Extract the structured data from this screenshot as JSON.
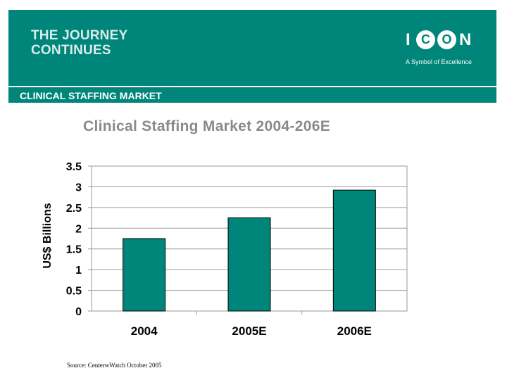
{
  "banner": {
    "title_line1": "THE JOURNEY",
    "title_line2": "CONTINUES",
    "logo_letters": [
      "I",
      "C",
      "O",
      "N"
    ],
    "logo_tagline": "A Symbol of Excellence"
  },
  "section": {
    "title": "CLINICAL STAFFING MARKET"
  },
  "colors": {
    "brand": "#00857a",
    "bar": "#00857a",
    "title": "#8a8a8a"
  },
  "chart_data": {
    "type": "bar",
    "title": "Clinical Staffing Market 2004-206E",
    "ylabel": "US$ Billions",
    "xlabel": "",
    "categories": [
      "2004",
      "2005E",
      "2006E"
    ],
    "values": [
      1.75,
      2.25,
      2.92
    ],
    "ylim": [
      0,
      3.5
    ],
    "yticks": [
      "0",
      "0.5",
      "1",
      "1.5",
      "2",
      "2.5",
      "3",
      "3.5"
    ],
    "grid": true,
    "legend": "none"
  },
  "footer": {
    "source": "Source: CenterwWatch October 2005"
  }
}
